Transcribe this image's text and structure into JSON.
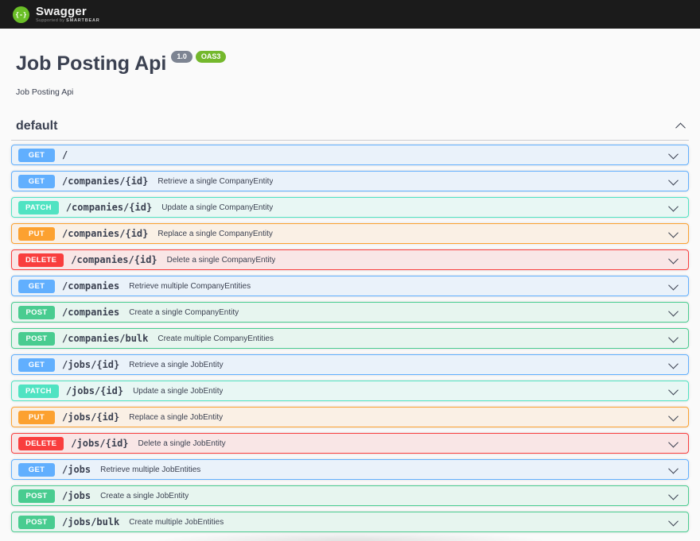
{
  "topbar": {
    "brand": "Swagger",
    "supported_by": "Supported by",
    "sponsor": "SMARTBEAR"
  },
  "info": {
    "title": "Job Posting Api",
    "version_badge": "1.0",
    "oas_badge": "OAS3",
    "description": "Job Posting Api"
  },
  "section": {
    "title": "default"
  },
  "colors": {
    "brand": "#6abf27",
    "oas": "#74b82c",
    "get": "#61affe",
    "post": "#49cc90",
    "patch": "#50e3c2",
    "put": "#fca130",
    "delete": "#f93e3e"
  },
  "icons": {
    "logo_glyph": "{-}"
  },
  "operations": [
    {
      "method": "GET",
      "path": "/",
      "summary": ""
    },
    {
      "method": "GET",
      "path": "/companies/{id}",
      "summary": "Retrieve a single CompanyEntity"
    },
    {
      "method": "PATCH",
      "path": "/companies/{id}",
      "summary": "Update a single CompanyEntity"
    },
    {
      "method": "PUT",
      "path": "/companies/{id}",
      "summary": "Replace a single CompanyEntity"
    },
    {
      "method": "DELETE",
      "path": "/companies/{id}",
      "summary": "Delete a single CompanyEntity"
    },
    {
      "method": "GET",
      "path": "/companies",
      "summary": "Retrieve multiple CompanyEntities"
    },
    {
      "method": "POST",
      "path": "/companies",
      "summary": "Create a single CompanyEntity"
    },
    {
      "method": "POST",
      "path": "/companies/bulk",
      "summary": "Create multiple CompanyEntities"
    },
    {
      "method": "GET",
      "path": "/jobs/{id}",
      "summary": "Retrieve a single JobEntity"
    },
    {
      "method": "PATCH",
      "path": "/jobs/{id}",
      "summary": "Update a single JobEntity"
    },
    {
      "method": "PUT",
      "path": "/jobs/{id}",
      "summary": "Replace a single JobEntity"
    },
    {
      "method": "DELETE",
      "path": "/jobs/{id}",
      "summary": "Delete a single JobEntity"
    },
    {
      "method": "GET",
      "path": "/jobs",
      "summary": "Retrieve multiple JobEntities"
    },
    {
      "method": "POST",
      "path": "/jobs",
      "summary": "Create a single JobEntity"
    },
    {
      "method": "POST",
      "path": "/jobs/bulk",
      "summary": "Create multiple JobEntities"
    }
  ]
}
